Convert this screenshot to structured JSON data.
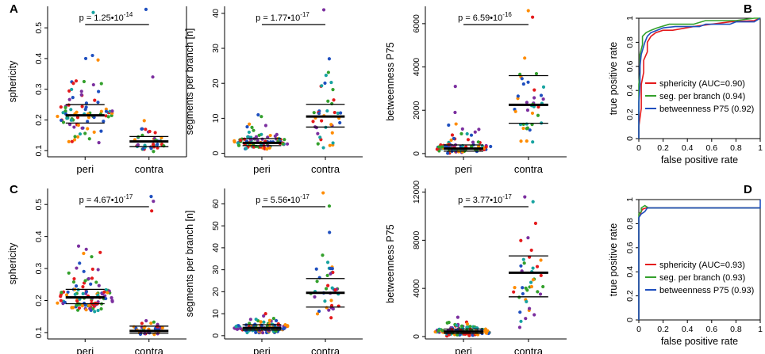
{
  "palette": [
    "#e41a1c",
    "#33a02c",
    "#1f4fbf",
    "#7b2f9f",
    "#ff8c00",
    "#17a3a0"
  ],
  "figure": {
    "panels": [
      {
        "letter": "A"
      },
      {
        "letter": "B"
      },
      {
        "letter": "C"
      },
      {
        "letter": "D"
      }
    ]
  },
  "chart_data": [
    {
      "id": "A1",
      "type": "scatter",
      "subtype": "dot-strip",
      "panel": "A",
      "ylabel": "sphericity",
      "ylim": [
        0.08,
        0.57
      ],
      "yticks": [
        0.1,
        0.2,
        0.3,
        0.4,
        0.5
      ],
      "ytick_labels": [
        "0.1",
        "0.2",
        "0.3",
        "0.4",
        "0.5"
      ],
      "categories": [
        "peri",
        "contra"
      ],
      "pvalue": {
        "prefix": "p = 1.25•10",
        "exp": "-14"
      },
      "groups": [
        {
          "name": "peri",
          "n": 85,
          "median": 0.215,
          "q1": 0.19,
          "q3": 0.25,
          "min": 0.105,
          "max": 0.41,
          "outliers": [
            0.55,
            0.41,
            0.4
          ]
        },
        {
          "name": "contra",
          "n": 40,
          "median": 0.13,
          "q1": 0.113,
          "q3": 0.146,
          "min": 0.095,
          "max": 0.23,
          "outliers": [
            0.56,
            0.34
          ]
        }
      ]
    },
    {
      "id": "A2",
      "type": "scatter",
      "subtype": "dot-strip",
      "panel": "A",
      "ylabel": "segments per branch [n]",
      "ylim": [
        -1,
        42
      ],
      "yticks": [
        0,
        10,
        20,
        30,
        40
      ],
      "ytick_labels": [
        "0",
        "10",
        "20",
        "30",
        "40"
      ],
      "categories": [
        "peri",
        "contra"
      ],
      "pvalue": {
        "prefix": "p = 1.77•10",
        "exp": "-17"
      },
      "groups": [
        {
          "name": "peri",
          "n": 85,
          "median": 3.0,
          "q1": 2.2,
          "q3": 4.2,
          "min": 1.0,
          "max": 8.5,
          "outliers": [
            11.0,
            10.5
          ]
        },
        {
          "name": "contra",
          "n": 40,
          "median": 10.5,
          "q1": 7.5,
          "q3": 14.0,
          "min": 0.5,
          "max": 26.5,
          "outliers": [
            41.0,
            27.0
          ]
        }
      ]
    },
    {
      "id": "A3",
      "type": "scatter",
      "subtype": "dot-strip",
      "panel": "A",
      "ylabel": "betweenness P75",
      "ylim": [
        -150,
        6800
      ],
      "yticks": [
        0,
        2000,
        4000,
        6000
      ],
      "ytick_labels": [
        "0",
        "2000",
        "4000",
        "6000"
      ],
      "categories": [
        "peri",
        "contra"
      ],
      "pvalue": {
        "prefix": "p = 6.59•10",
        "exp": "-16"
      },
      "groups": [
        {
          "name": "peri",
          "n": 85,
          "median": 230,
          "q1": 110,
          "q3": 400,
          "min": 10,
          "max": 1500,
          "outliers": [
            3100,
            1900
          ]
        },
        {
          "name": "contra",
          "n": 40,
          "median": 2250,
          "q1": 1400,
          "q3": 3600,
          "min": 30,
          "max": 5300,
          "outliers": [
            6600,
            6300
          ]
        }
      ]
    },
    {
      "id": "B",
      "type": "line",
      "subtype": "roc",
      "panel": "B",
      "xlabel": "false positive rate",
      "ylabel": "true positive rate",
      "xlim": [
        0,
        1
      ],
      "ylim": [
        0,
        1
      ],
      "xticks": [
        0,
        0.2,
        0.4,
        0.6,
        0.8,
        1
      ],
      "xtick_labels": [
        "0",
        "0.2",
        "0.4",
        "0.6",
        "0.8",
        "1"
      ],
      "yticks": [
        0,
        0.2,
        0.4,
        0.6,
        0.8,
        1
      ],
      "ytick_labels": [
        "0",
        "0.2",
        "0.4",
        "0.6",
        "0.8",
        "1"
      ],
      "legend_position": "bottom-right",
      "series": [
        {
          "name": "sphericity (AUC=0.90)",
          "color": "#e41a1c",
          "x": [
            0,
            0,
            0.02,
            0.02,
            0.04,
            0.04,
            0.07,
            0.07,
            0.1,
            0.14,
            0.2,
            0.28,
            0.45,
            0.6,
            0.75,
            0.95,
            1
          ],
          "y": [
            0,
            0.1,
            0.25,
            0.45,
            0.55,
            0.65,
            0.72,
            0.8,
            0.85,
            0.88,
            0.9,
            0.9,
            0.93,
            0.95,
            0.97,
            0.98,
            1
          ]
        },
        {
          "name": "seg. per branch (0.94)",
          "color": "#33a02c",
          "x": [
            0,
            0,
            0.01,
            0.01,
            0.03,
            0.03,
            0.06,
            0.1,
            0.15,
            0.25,
            0.45,
            0.55,
            0.8,
            0.95,
            1
          ],
          "y": [
            0,
            0.45,
            0.55,
            0.7,
            0.78,
            0.85,
            0.88,
            0.9,
            0.92,
            0.95,
            0.95,
            0.98,
            0.98,
            1,
            1
          ]
        },
        {
          "name": "betweenness P75 (0.92)",
          "color": "#1f4fbf",
          "x": [
            0,
            0,
            0.01,
            0.01,
            0.02,
            0.05,
            0.07,
            0.1,
            0.15,
            0.2,
            0.3,
            0.5,
            0.55,
            0.75,
            0.8,
            0.95,
            1
          ],
          "y": [
            0,
            0.3,
            0.45,
            0.6,
            0.7,
            0.8,
            0.85,
            0.88,
            0.9,
            0.92,
            0.93,
            0.93,
            0.95,
            0.95,
            0.97,
            0.97,
            1
          ]
        }
      ]
    },
    {
      "id": "C1",
      "type": "scatter",
      "subtype": "dot-strip",
      "panel": "C",
      "ylabel": "sphericity",
      "ylim": [
        0.08,
        0.55
      ],
      "yticks": [
        0.1,
        0.2,
        0.3,
        0.4,
        0.5
      ],
      "ytick_labels": [
        "0.1",
        "0.2",
        "0.3",
        "0.4",
        "0.5"
      ],
      "categories": [
        "peri",
        "contra"
      ],
      "pvalue": {
        "prefix": "p = 4.67•10",
        "exp": "-17"
      },
      "groups": [
        {
          "name": "peri",
          "n": 110,
          "median": 0.21,
          "q1": 0.19,
          "q3": 0.235,
          "min": 0.16,
          "max": 0.37,
          "outliers": [
            0.37,
            0.36
          ]
        },
        {
          "name": "contra",
          "n": 40,
          "median": 0.105,
          "q1": 0.098,
          "q3": 0.12,
          "min": 0.09,
          "max": 0.15,
          "outliers": [
            0.525,
            0.51,
            0.48
          ]
        }
      ]
    },
    {
      "id": "C2",
      "type": "scatter",
      "subtype": "dot-strip",
      "panel": "C",
      "ylabel": "segments per branch [n]",
      "ylim": [
        -1.5,
        67
      ],
      "yticks": [
        0,
        10,
        20,
        30,
        40,
        50,
        60
      ],
      "ytick_labels": [
        "0",
        "10",
        "20",
        "30",
        "40",
        "50",
        "60"
      ],
      "categories": [
        "peri",
        "contra"
      ],
      "pvalue": {
        "prefix": "p = 5.56•10",
        "exp": "-17"
      },
      "groups": [
        {
          "name": "peri",
          "n": 110,
          "median": 3.5,
          "q1": 2.5,
          "q3": 5.0,
          "min": 1.0,
          "max": 9.0,
          "outliers": [
            10.0
          ]
        },
        {
          "name": "contra",
          "n": 40,
          "median": 19.5,
          "q1": 13.0,
          "q3": 26.0,
          "min": 0.5,
          "max": 40.0,
          "outliers": [
            65.0,
            59.0,
            47.0
          ]
        }
      ]
    },
    {
      "id": "C3",
      "type": "scatter",
      "subtype": "dot-strip",
      "panel": "C",
      "ylabel": "betweenness P75",
      "ylim": [
        -200,
        12300
      ],
      "yticks": [
        0,
        4000,
        8000,
        12000
      ],
      "ytick_labels": [
        "0",
        "4000",
        "8000",
        "12000"
      ],
      "categories": [
        "peri",
        "contra"
      ],
      "pvalue": {
        "prefix": "p = 3.77•10",
        "exp": "-17"
      },
      "groups": [
        {
          "name": "peri",
          "n": 110,
          "median": 420,
          "q1": 250,
          "q3": 620,
          "min": 20,
          "max": 1500,
          "outliers": [
            1600
          ]
        },
        {
          "name": "contra",
          "n": 40,
          "median": 5300,
          "q1": 3300,
          "q3": 6700,
          "min": 20,
          "max": 10400,
          "outliers": [
            11600,
            11200
          ]
        }
      ]
    },
    {
      "id": "D",
      "type": "line",
      "subtype": "roc",
      "panel": "D",
      "xlabel": "false positive rate",
      "ylabel": "true positive rate",
      "xlim": [
        0,
        1
      ],
      "ylim": [
        0,
        1
      ],
      "xticks": [
        0,
        0.2,
        0.4,
        0.6,
        0.8,
        1
      ],
      "xtick_labels": [
        "0",
        "0.2",
        "0.4",
        "0.6",
        "0.8",
        "1"
      ],
      "yticks": [
        0,
        0.2,
        0.4,
        0.6,
        0.8,
        1
      ],
      "ytick_labels": [
        "0",
        "0.2",
        "0.4",
        "0.6",
        "0.8",
        "1"
      ],
      "legend_position": "bottom-right",
      "series": [
        {
          "name": "sphericity (AUC=0.93)",
          "color": "#e41a1c",
          "x": [
            0,
            0,
            0.01,
            0.02,
            0.03,
            0.06,
            1
          ],
          "y": [
            0,
            0.85,
            0.87,
            0.9,
            0.92,
            0.93,
            0.93
          ]
        },
        {
          "name": "seg. per branch (0.93)",
          "color": "#33a02c",
          "x": [
            0,
            0,
            0.02,
            0.02,
            0.05,
            0.08,
            1
          ],
          "y": [
            0,
            0.88,
            0.9,
            0.93,
            0.95,
            0.93,
            0.93
          ]
        },
        {
          "name": "betweenness P75 (0.93)",
          "color": "#1f4fbf",
          "x": [
            0,
            0,
            0.02,
            0.05,
            0.07,
            1,
            1
          ],
          "y": [
            0,
            0.85,
            0.88,
            0.9,
            0.93,
            0.93,
            1
          ]
        }
      ]
    }
  ]
}
